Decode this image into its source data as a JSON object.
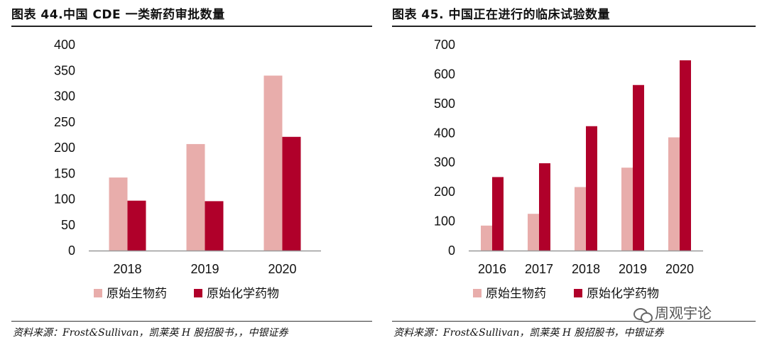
{
  "left": {
    "title": "图表 44.中国 CDE 一类新药审批数量",
    "source": "资料来源：Frost&Sullivan，凯莱英 H 股招股书，，中银证券"
  },
  "right": {
    "title": "图表 45. 中国正在进行的临床试验数量",
    "source": "资料来源：Frost&Sullivan，凯莱英 H 股招股书，中银证券"
  },
  "watermark": "周观宇论",
  "colors": {
    "bio": "#e8adab",
    "chem": "#b0002a",
    "axis": "#999999"
  },
  "chart_data": [
    {
      "type": "bar",
      "categories": [
        "2018",
        "2019",
        "2020"
      ],
      "series": [
        {
          "name": "原始生物药",
          "values": [
            142,
            207,
            340
          ]
        },
        {
          "name": "原始化学药物",
          "values": [
            97,
            96,
            221
          ]
        }
      ],
      "ylim": [
        0,
        400
      ],
      "yticks": [
        0,
        50,
        100,
        150,
        200,
        250,
        300,
        350,
        400
      ],
      "legend": "bottom",
      "grid": false
    },
    {
      "type": "bar",
      "categories": [
        "2016",
        "2017",
        "2018",
        "2019",
        "2020"
      ],
      "series": [
        {
          "name": "原始生物药",
          "values": [
            85,
            125,
            216,
            282,
            385
          ]
        },
        {
          "name": "原始化学药物",
          "values": [
            250,
            297,
            423,
            563,
            647
          ]
        }
      ],
      "ylim": [
        0,
        700
      ],
      "yticks": [
        0,
        100,
        200,
        300,
        400,
        500,
        600,
        700
      ],
      "legend": "bottom",
      "grid": false
    }
  ]
}
